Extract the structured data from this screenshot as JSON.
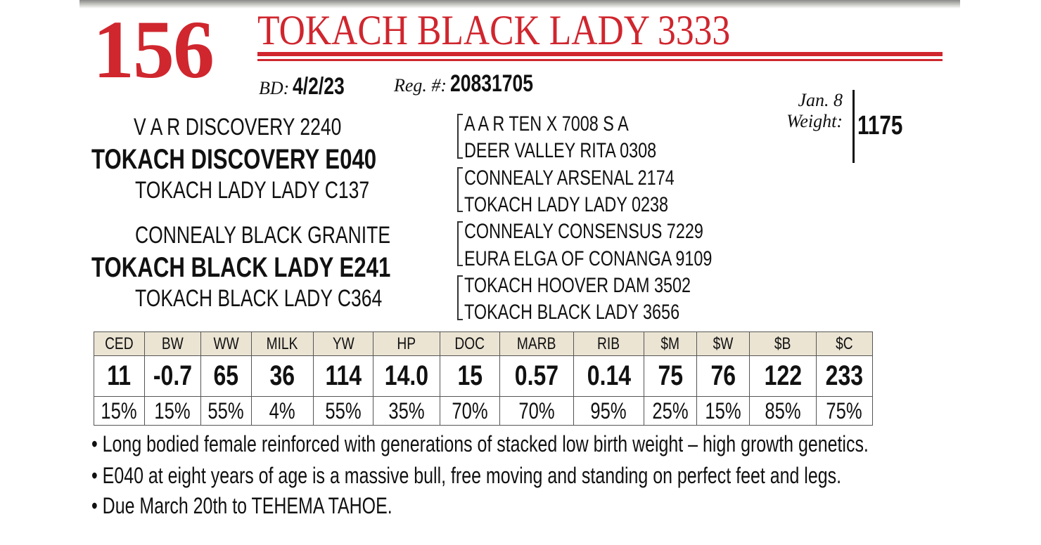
{
  "lot": "156",
  "name": "TOKACH BLACK LADY 3333",
  "bd_label": "BD:",
  "bd": "4/2/23",
  "reg_label": "Reg. #:",
  "reg": "20831705",
  "weight": {
    "date_label": "Jan. 8",
    "label": "Weight:",
    "value": "1175"
  },
  "pedigree": {
    "sire_sire": "V A R DISCOVERY 2240",
    "sire": "TOKACH DISCOVERY E040",
    "sire_dam": "TOKACH LADY LADY C137",
    "dam_sire": "CONNEALY BLACK GRANITE",
    "dam": "TOKACH BLACK LADY E241",
    "dam_dam": "TOKACH BLACK LADY C364",
    "great": [
      "A A R TEN X 7008 S A",
      "DEER VALLEY RITA 0308",
      "CONNEALY ARSENAL 2174",
      "TOKACH LADY LADY 0238",
      "CONNEALY CONSENSUS 7229",
      "EURA ELGA OF CONANGA 9109",
      "TOKACH HOOVER DAM 3502",
      "TOKACH BLACK LADY 3656"
    ]
  },
  "epd": {
    "headers": [
      "CED",
      "BW",
      "WW",
      "MILK",
      "YW",
      "HP",
      "DOC",
      "MARB",
      "RIB",
      "$M",
      "$W",
      "$B",
      "$C"
    ],
    "values": [
      "11",
      "-0.7",
      "65",
      "36",
      "114",
      "14.0",
      "15",
      "0.57",
      "0.14",
      "75",
      "76",
      "122",
      "233"
    ],
    "percentiles": [
      "15%",
      "15%",
      "55%",
      "4%",
      "55%",
      "35%",
      "70%",
      "70%",
      "95%",
      "25%",
      "15%",
      "85%",
      "75%"
    ]
  },
  "notes": [
    "• Long bodied female reinforced with generations of stacked low birth weight – high growth genetics.",
    "• E040 at eight years of age is a massive bull, free moving and standing on perfect feet and legs.",
    "• Due March 20th to TEHEMA TAHOE."
  ],
  "colors": {
    "accent": "#d0262e",
    "header_bg": "#ebe4d3"
  }
}
